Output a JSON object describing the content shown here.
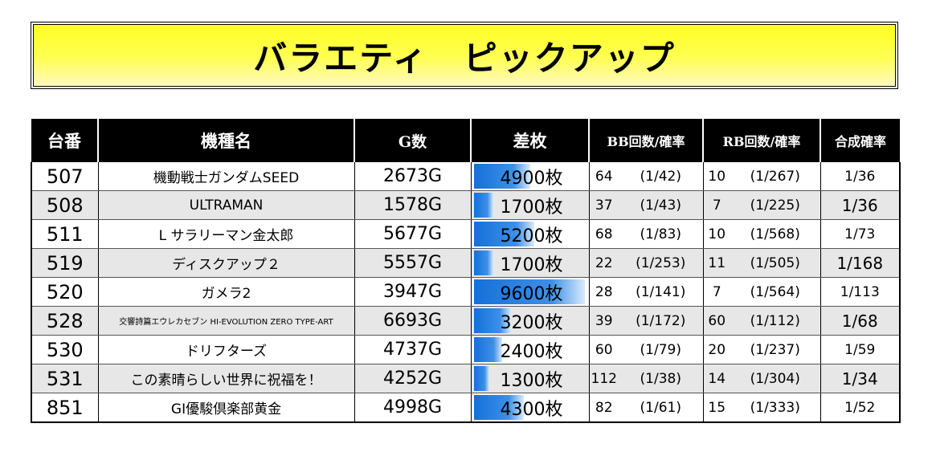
{
  "title": "バラエティ　ピックアップ",
  "headers": {
    "table": "台番",
    "name": "機種名",
    "games": "G数",
    "diff": "差枚",
    "bb": "BB回数/確率",
    "rb": "RB回数/確率",
    "combined": "合成確率"
  },
  "colors": {
    "banner": "#ffff33",
    "header_bg": "#000000",
    "bar": "#1f78e0"
  },
  "diff_scale_max": 9600,
  "rows": [
    {
      "table": "507",
      "name": "機動戦士ガンダムSEED",
      "games": "2673G",
      "diff": "4900枚",
      "diff_value": 4900,
      "bb": "64",
      "bb_rate": "(1/42)",
      "rb": "10",
      "rb_rate": "(1/267)",
      "combined": "1/36"
    },
    {
      "table": "508",
      "name": "ULTRAMAN",
      "games": "1578G",
      "diff": "1700枚",
      "diff_value": 1700,
      "bb": "37",
      "bb_rate": "(1/43)",
      "rb": "7",
      "rb_rate": "(1/225)",
      "combined": "1/36"
    },
    {
      "table": "511",
      "name": "L サラリーマン金太郎",
      "games": "5677G",
      "diff": "5200枚",
      "diff_value": 5200,
      "bb": "68",
      "bb_rate": "(1/83)",
      "rb": "10",
      "rb_rate": "(1/568)",
      "combined": "1/73"
    },
    {
      "table": "519",
      "name": "ディスクアップ２",
      "games": "5557G",
      "diff": "1700枚",
      "diff_value": 1700,
      "bb": "22",
      "bb_rate": "(1/253)",
      "rb": "11",
      "rb_rate": "(1/505)",
      "combined": "1/168"
    },
    {
      "table": "520",
      "name": "ガメラ2",
      "games": "3947G",
      "diff": "9600枚",
      "diff_value": 9600,
      "bb": "28",
      "bb_rate": "(1/141)",
      "rb": "7",
      "rb_rate": "(1/564)",
      "combined": "1/113"
    },
    {
      "table": "528",
      "name": "交響詩篇エウレカセブン HI-EVOLUTION ZERO TYPE-ART",
      "games": "6693G",
      "diff": "3200枚",
      "diff_value": 3200,
      "bb": "39",
      "bb_rate": "(1/172)",
      "rb": "60",
      "rb_rate": "(1/112)",
      "combined": "1/68"
    },
    {
      "table": "530",
      "name": "ドリフターズ",
      "games": "4737G",
      "diff": "2400枚",
      "diff_value": 2400,
      "bb": "60",
      "bb_rate": "(1/79)",
      "rb": "20",
      "rb_rate": "(1/237)",
      "combined": "1/59"
    },
    {
      "table": "531",
      "name": "この素晴らしい世界に祝福を！",
      "games": "4252G",
      "diff": "1300枚",
      "diff_value": 1300,
      "bb": "112",
      "bb_rate": "(1/38)",
      "rb": "14",
      "rb_rate": "(1/304)",
      "combined": "1/34"
    },
    {
      "table": "851",
      "name": "GI優駿倶楽部黄金",
      "games": "4998G",
      "diff": "4300枚",
      "diff_value": 4300,
      "bb": "82",
      "bb_rate": "(1/61)",
      "rb": "15",
      "rb_rate": "(1/333)",
      "combined": "1/52"
    }
  ]
}
